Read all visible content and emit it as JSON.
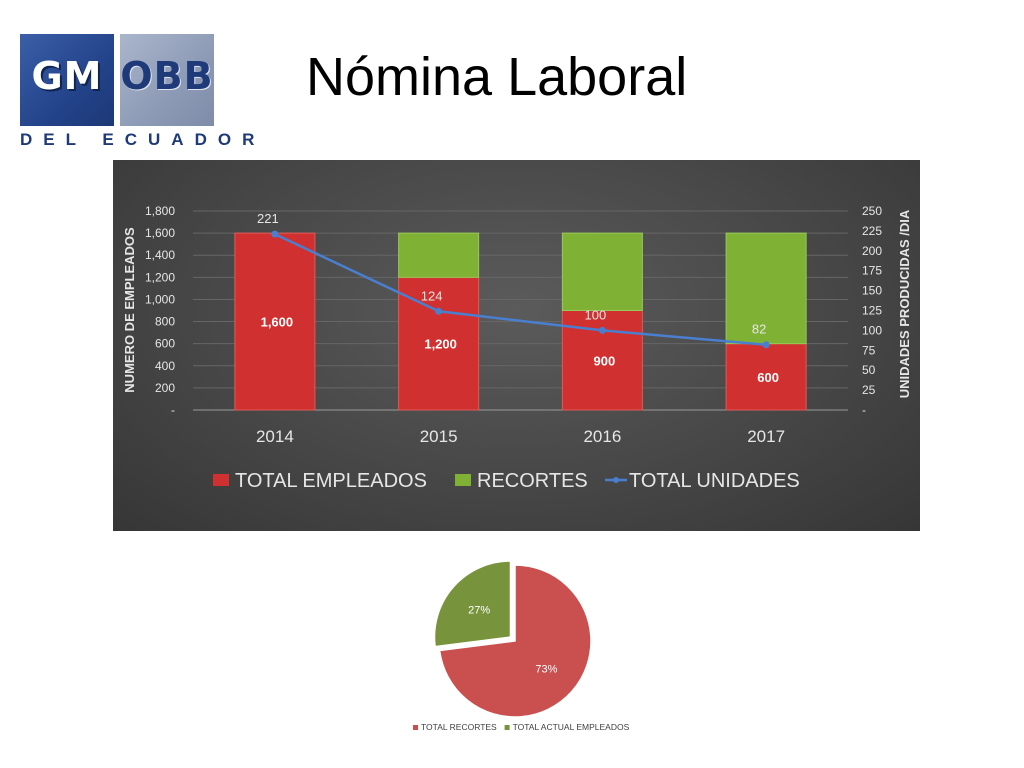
{
  "logo": {
    "left_text": "GM",
    "right_text": "OBB",
    "subtitle": "DEL ECUADOR"
  },
  "page_title": "Nómina Laboral",
  "chart_data": [
    {
      "type": "bar",
      "stacked": true,
      "categories": [
        "2014",
        "2015",
        "2016",
        "2017"
      ],
      "series": [
        {
          "name": "TOTAL EMPLEADOS",
          "values": [
            1600,
            1200,
            900,
            600
          ],
          "value_labels": [
            "1,600",
            "1,200",
            "900",
            "600"
          ],
          "color": "#d0302f",
          "axis": "left"
        },
        {
          "name": "RECORTES",
          "values": [
            0,
            400,
            700,
            1000
          ],
          "color": "#7fb135",
          "axis": "left"
        },
        {
          "name": "TOTAL UNIDADES",
          "type": "line",
          "values": [
            221,
            124,
            100,
            82
          ],
          "color": "#4a7fd0",
          "axis": "right"
        }
      ],
      "ylabel": "NUMERO DE EMPLEADOS",
      "y2label": "UNIDADES PRODUCIDAS /DIA",
      "ylim": [
        0,
        1800
      ],
      "y2lim": [
        0,
        250
      ],
      "y_ticks": [
        "-",
        "200",
        "400",
        "600",
        "800",
        "1,000",
        "1,200",
        "1,400",
        "1,600",
        "1,800"
      ],
      "y2_ticks": [
        "-",
        "25",
        "50",
        "75",
        "100",
        "125",
        "150",
        "175",
        "200",
        "225",
        "250"
      ],
      "grid": true,
      "legend_position": "bottom"
    },
    {
      "type": "pie",
      "slices": [
        {
          "label": "TOTAL RECORTES",
          "value": 73,
          "text": "73%",
          "color": "#c9504f"
        },
        {
          "label": "TOTAL ACTUAL EMPLEADOS",
          "value": 27,
          "text": "27%",
          "color": "#77943c"
        }
      ],
      "legend_position": "bottom"
    }
  ]
}
